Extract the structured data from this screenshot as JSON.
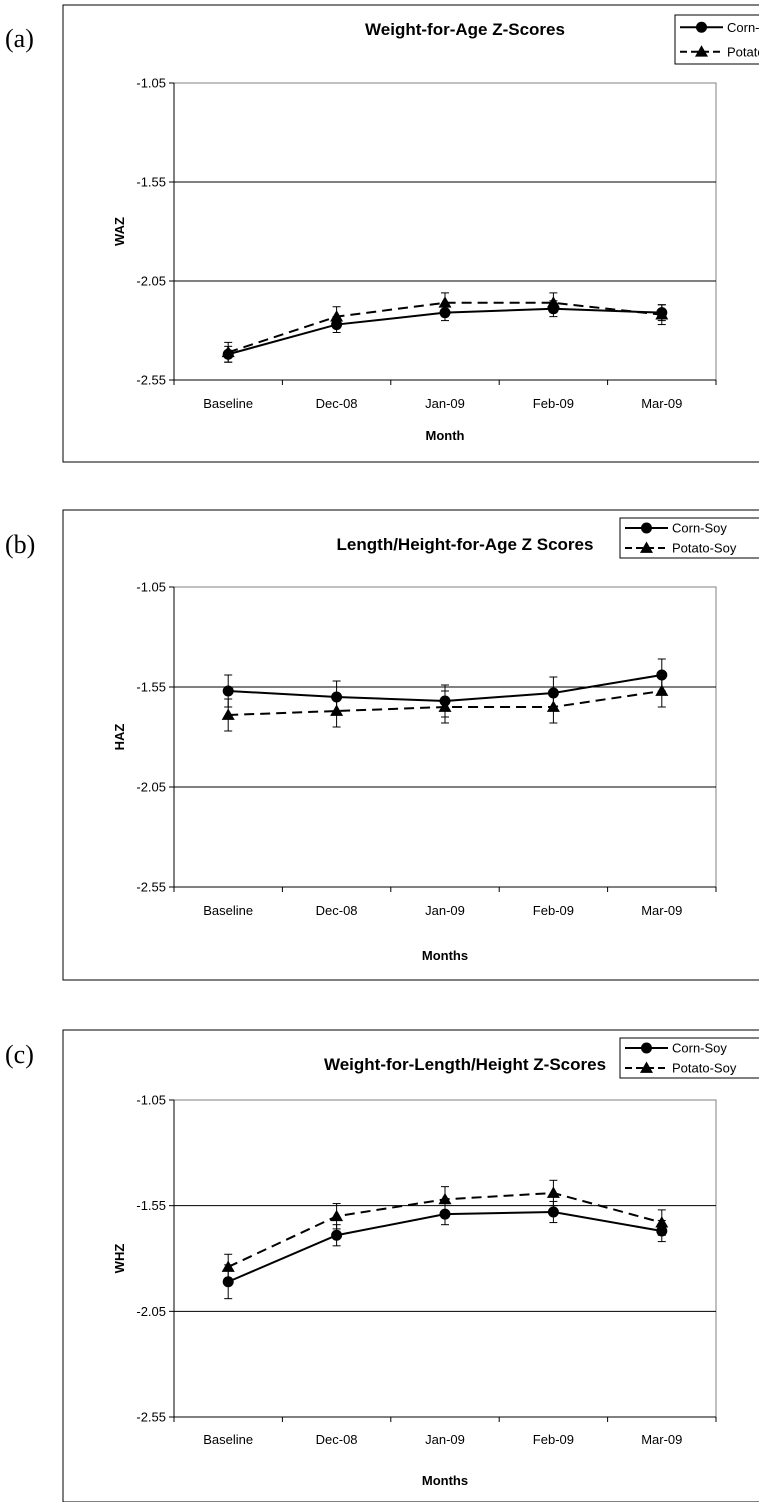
{
  "panels": [
    {
      "letter": "(a)",
      "chart_data": {
        "type": "line",
        "title": "Weight-for-Age Z-Scores",
        "xlabel": "Month",
        "ylabel": "WAZ",
        "categories": [
          "Baseline",
          "Dec-08",
          "Jan-09",
          "Feb-09",
          "Mar-09"
        ],
        "ylim": [
          -2.55,
          -1.05
        ],
        "yticks": [
          "-1.05",
          "-1.55",
          "-2.05",
          "-2.55"
        ],
        "grid": true,
        "legend_position": "top-right",
        "series": [
          {
            "name": "Corn-Soy",
            "marker": "circle",
            "dash": "solid",
            "values": [
              -2.42,
              -2.27,
              -2.21,
              -2.19,
              -2.21
            ],
            "errors": [
              0.04,
              0.04,
              0.04,
              0.04,
              0.04
            ]
          },
          {
            "name": "Potato-Soy",
            "marker": "triangle",
            "dash": "dashed",
            "values": [
              -2.41,
              -2.23,
              -2.16,
              -2.16,
              -2.22
            ],
            "errors": [
              0.05,
              0.05,
              0.05,
              0.05,
              0.05
            ]
          }
        ]
      }
    },
    {
      "letter": "(b)",
      "chart_data": {
        "type": "line",
        "title": "Length/Height-for-Age Z Scores",
        "xlabel": "Months",
        "ylabel": "HAZ",
        "categories": [
          "Baseline",
          "Dec-08",
          "Jan-09",
          "Feb-09",
          "Mar-09"
        ],
        "ylim": [
          -2.55,
          -1.05
        ],
        "yticks": [
          "-1.05",
          "-1.55",
          "-2.05",
          "-2.55"
        ],
        "grid": true,
        "legend_position": "top-right",
        "series": [
          {
            "name": "Corn-Soy",
            "marker": "circle",
            "dash": "solid",
            "values": [
              -1.57,
              -1.6,
              -1.62,
              -1.58,
              -1.49
            ],
            "errors": [
              0.08,
              0.08,
              0.08,
              0.08,
              0.08
            ]
          },
          {
            "name": "Potato-Soy",
            "marker": "triangle",
            "dash": "dashed",
            "values": [
              -1.69,
              -1.67,
              -1.65,
              -1.65,
              -1.57
            ],
            "errors": [
              0.08,
              0.08,
              0.08,
              0.08,
              0.08
            ]
          }
        ]
      }
    },
    {
      "letter": "(c)",
      "chart_data": {
        "type": "line",
        "title": "Weight-for-Length/Height Z-Scores",
        "xlabel": "Months",
        "ylabel": "WHZ",
        "categories": [
          "Baseline",
          "Dec-08",
          "Jan-09",
          "Feb-09",
          "Mar-09"
        ],
        "ylim": [
          -2.55,
          -1.05
        ],
        "yticks": [
          "-1.05",
          "-1.55",
          "-2.05",
          "-2.55"
        ],
        "grid": true,
        "legend_position": "top-right",
        "series": [
          {
            "name": "Corn-Soy",
            "marker": "circle",
            "dash": "solid",
            "values": [
              -1.91,
              -1.69,
              -1.59,
              -1.58,
              -1.67
            ],
            "errors": [
              0.08,
              0.05,
              0.05,
              0.05,
              0.05
            ]
          },
          {
            "name": "Potato-Soy",
            "marker": "triangle",
            "dash": "dashed",
            "values": [
              -1.84,
              -1.6,
              -1.52,
              -1.49,
              -1.63
            ],
            "errors": [
              0.06,
              0.06,
              0.06,
              0.06,
              0.06
            ]
          }
        ]
      }
    }
  ]
}
